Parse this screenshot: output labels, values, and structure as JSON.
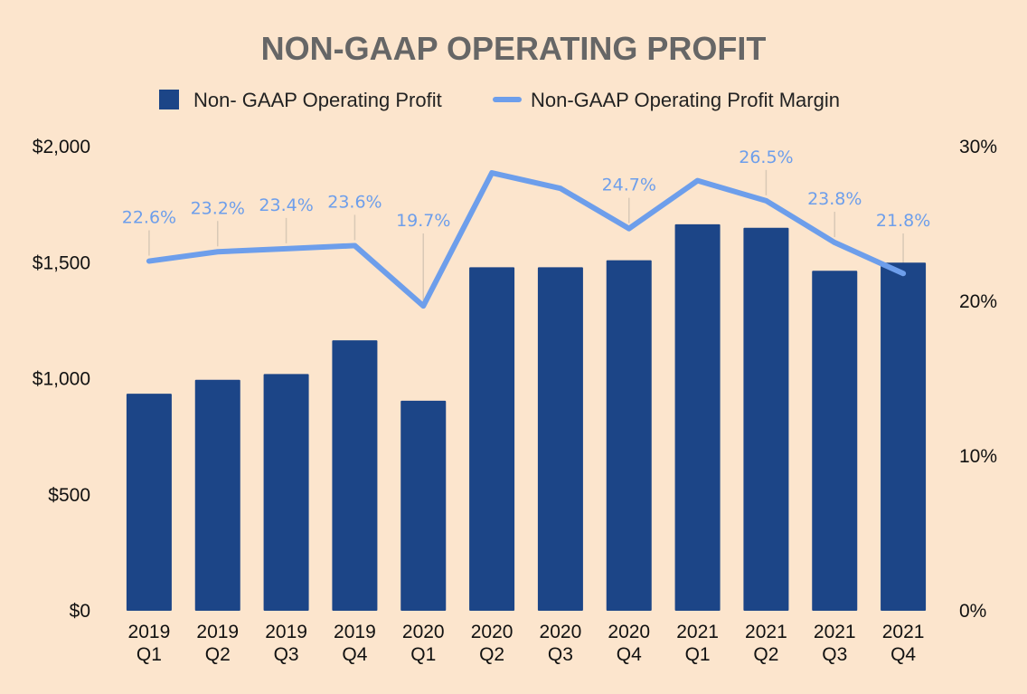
{
  "chart_data": {
    "type": "bar",
    "title": "NON-GAAP OPERATING PROFIT",
    "legend": {
      "placement": "top-center",
      "entries": [
        "Non- GAAP Operating Profit",
        "Non-GAAP Operating Profit Margin"
      ]
    },
    "categories": [
      [
        "2019",
        "Q1"
      ],
      [
        "2019",
        "Q2"
      ],
      [
        "2019",
        "Q3"
      ],
      [
        "2019",
        "Q4"
      ],
      [
        "2020",
        "Q1"
      ],
      [
        "2020",
        "Q2"
      ],
      [
        "2020",
        "Q3"
      ],
      [
        "2020",
        "Q4"
      ],
      [
        "2021",
        "Q1"
      ],
      [
        "2021",
        "Q2"
      ],
      [
        "2021",
        "Q3"
      ],
      [
        "2021",
        "Q4"
      ]
    ],
    "series": [
      {
        "name": "Non- GAAP Operating Profit",
        "type": "bar",
        "axis": "left",
        "values": [
          935,
          995,
          1020,
          1165,
          905,
          1480,
          1480,
          1510,
          1665,
          1650,
          1465,
          1500
        ]
      },
      {
        "name": "Non-GAAP Operating Profit Margin",
        "type": "line",
        "axis": "right",
        "values": [
          22.6,
          23.2,
          23.4,
          23.6,
          19.7,
          28.3,
          27.3,
          24.7,
          27.8,
          26.5,
          23.8,
          21.8
        ],
        "labels": [
          "22.6%",
          "23.2%",
          "23.4%",
          "23.6%",
          "19.7%",
          "",
          "",
          "24.7%",
          "",
          "26.5%",
          "23.8%",
          "21.8%"
        ]
      }
    ],
    "y_left": {
      "range": [
        0,
        2000
      ],
      "ticks": [
        0,
        500,
        1000,
        1500,
        2000
      ],
      "tick_labels": [
        "$0",
        "$500",
        "$1,000",
        "$1,500",
        "$2,000"
      ]
    },
    "y_right": {
      "range": [
        0,
        30
      ],
      "ticks": [
        0,
        10,
        20,
        30
      ],
      "tick_labels": [
        "0%",
        "10%",
        "20%",
        "30%"
      ]
    },
    "grid": false,
    "colors": {
      "background": "#fce5cd",
      "bar": "#1c4587",
      "line": "#6d9eeb",
      "title": "#666666",
      "label_leader": "#d9c9b6"
    }
  }
}
